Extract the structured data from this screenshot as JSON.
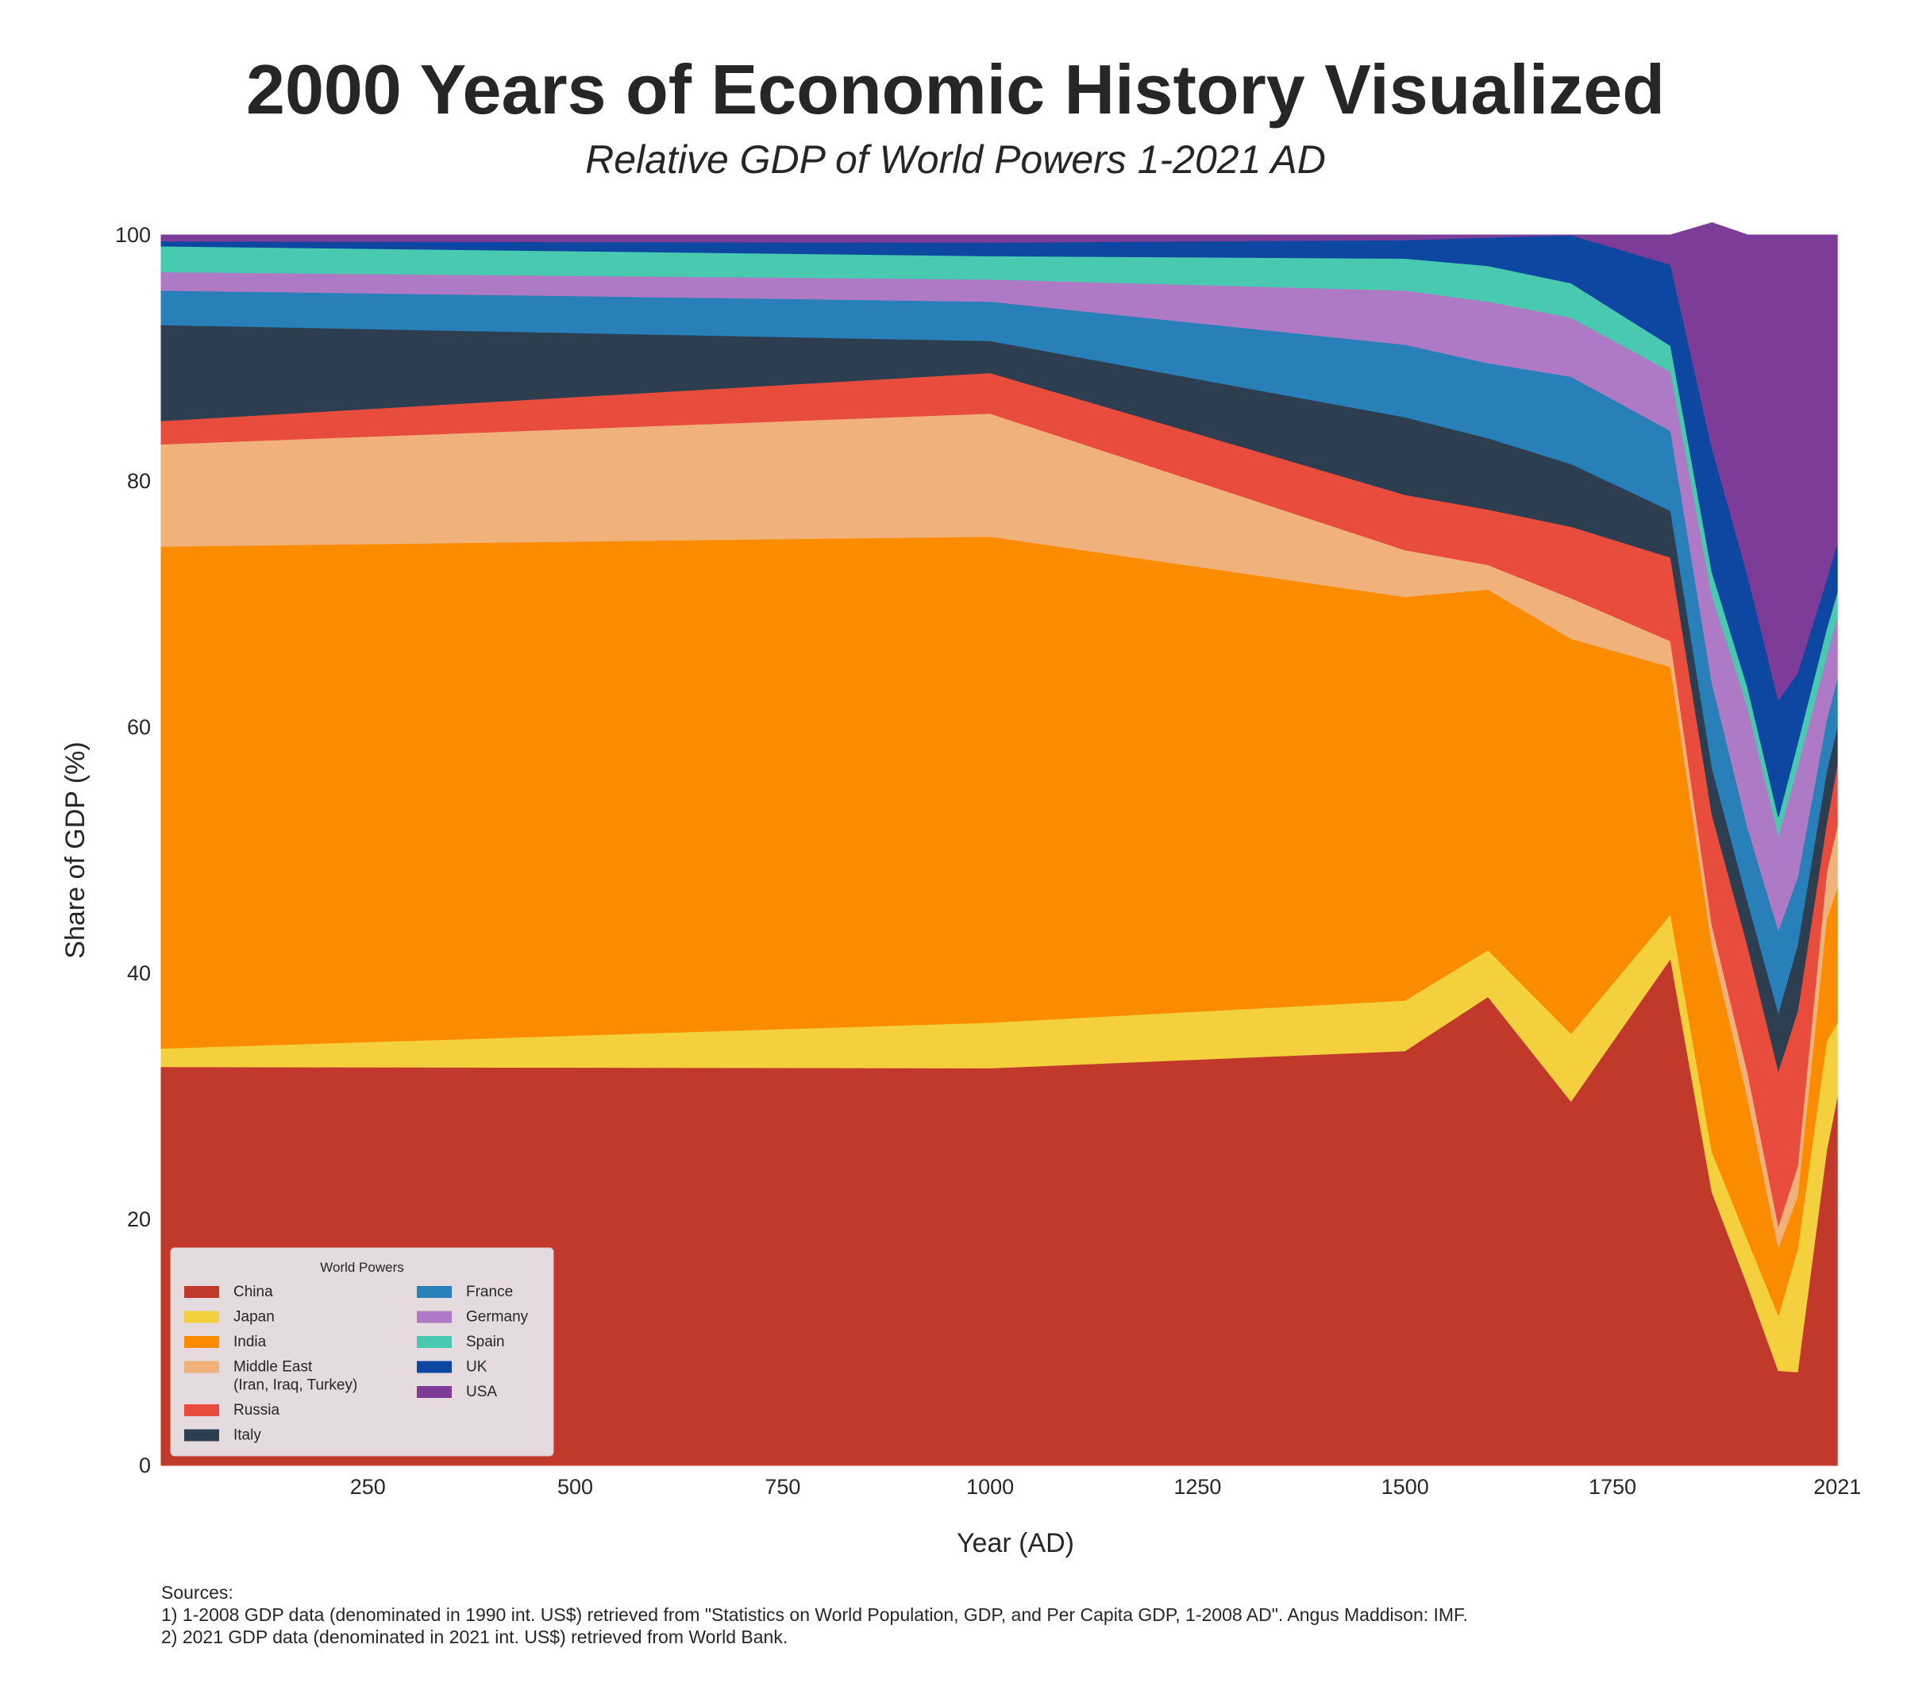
{
  "title": "2000 Years of Economic History Visualized",
  "subtitle": "Relative GDP of World Powers 1-2021 AD",
  "sources": {
    "heading": "Sources:",
    "line1": "1) 1-2008 GDP data (denominated in 1990 int. US$) retrieved from \"Statistics on World Population, GDP, and Per Capita GDP, 1-2008 AD\". Angus Maddison: IMF.",
    "line2": "2) 2021 GDP data (denominated in 2021 int. US$) retrieved from World Bank."
  },
  "chart_data": {
    "type": "area",
    "stacked": true,
    "normalized_percent": true,
    "xlabel": "Year (AD)",
    "ylabel": "Share of GDP (%)",
    "xlim": [
      1,
      2060
    ],
    "ylim": [
      0,
      100
    ],
    "x_ticks": [
      250,
      500,
      750,
      1000,
      1250,
      1500,
      1750,
      2021
    ],
    "y_ticks": [
      0,
      20,
      40,
      60,
      80,
      100
    ],
    "grid": false,
    "legend": {
      "title": "World Powers",
      "placement": "bottom-left",
      "columns": 2
    },
    "x": [
      1,
      1000,
      1500,
      1600,
      1700,
      1820,
      1870,
      1913,
      1950,
      1973,
      2008,
      2021
    ],
    "series": [
      {
        "name": "China",
        "color": "#c0392b",
        "values": [
          32.4,
          32.3,
          33.7,
          38.1,
          29.6,
          41.2,
          22.2,
          14.6,
          7.7,
          7.6,
          25.6,
          30.0
        ]
      },
      {
        "name": "Japan",
        "color": "#f4d03f",
        "values": [
          1.5,
          3.7,
          4.1,
          3.8,
          5.5,
          3.6,
          3.3,
          3.7,
          4.5,
          10.0,
          8.9,
          6.0
        ]
      },
      {
        "name": "India",
        "color": "#fb8c00",
        "values": [
          40.8,
          39.5,
          32.8,
          29.3,
          32.1,
          20.1,
          16.7,
          11.5,
          5.5,
          4.3,
          9.9,
          11.0
        ]
      },
      {
        "name": "Middle East\n(Iran, Iraq, Turkey)",
        "color": "#f0b27a",
        "values": [
          8.3,
          10.0,
          3.8,
          2.0,
          3.3,
          2.1,
          1.7,
          2.1,
          1.8,
          2.4,
          3.8,
          5.0
        ]
      },
      {
        "name": "Russia",
        "color": "#e74c3c",
        "values": [
          1.9,
          3.3,
          4.5,
          4.5,
          5.8,
          6.8,
          9.0,
          10.3,
          12.6,
          12.6,
          4.0,
          5.0
        ]
      },
      {
        "name": "Italy",
        "color": "#2c3e50",
        "values": [
          7.8,
          2.6,
          6.3,
          5.8,
          5.1,
          3.8,
          3.8,
          3.6,
          4.7,
          5.4,
          4.2,
          3.0
        ]
      },
      {
        "name": "France",
        "color": "#2980b9",
        "values": [
          2.8,
          3.2,
          5.9,
          6.1,
          7.1,
          6.5,
          6.9,
          6.0,
          6.7,
          5.5,
          4.2,
          4.0
        ]
      },
      {
        "name": "Germany",
        "color": "#af7ac5",
        "values": [
          1.5,
          1.8,
          4.4,
          5.0,
          4.8,
          4.8,
          7.1,
          9.8,
          7.7,
          9.0,
          5.2,
          5.0
        ]
      },
      {
        "name": "Spain",
        "color": "#48c9b0",
        "values": [
          2.1,
          1.9,
          2.6,
          2.9,
          2.8,
          2.1,
          1.9,
          1.6,
          1.5,
          1.9,
          2.2,
          2.0
        ]
      },
      {
        "name": "UK",
        "color": "#0d47a1",
        "values": [
          0.4,
          1.1,
          1.5,
          2.3,
          3.9,
          6.6,
          10.1,
          9.1,
          9.5,
          5.7,
          4.0,
          4.0
        ]
      },
      {
        "name": "USA",
        "color": "#7d3c98",
        "values": [
          0.5,
          0.6,
          0.4,
          0.2,
          0.0,
          2.4,
          18.3,
          27.7,
          37.8,
          35.6,
          28.0,
          25.0
        ]
      }
    ]
  }
}
